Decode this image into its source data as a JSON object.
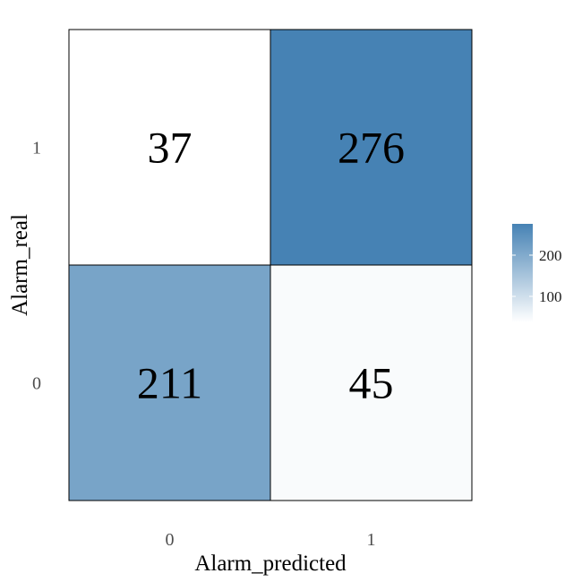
{
  "chart_data": {
    "type": "heatmap",
    "xlabel": "Alarm_predicted",
    "ylabel": "Alarm_real",
    "x_categories": [
      "0",
      "1"
    ],
    "y_categories": [
      "0",
      "1"
    ],
    "cells": [
      {
        "x": "0",
        "y": "1",
        "value": 37
      },
      {
        "x": "1",
        "y": "1",
        "value": 276
      },
      {
        "x": "0",
        "y": "0",
        "value": 211
      },
      {
        "x": "1",
        "y": "0",
        "value": 45
      }
    ],
    "color_scale": {
      "low_color": "#ffffff",
      "high_color": "#4682b4",
      "min": 37,
      "max": 276,
      "breaks": [
        100,
        200
      ]
    },
    "legend": {
      "position": "right",
      "title": ""
    },
    "grid": false
  }
}
